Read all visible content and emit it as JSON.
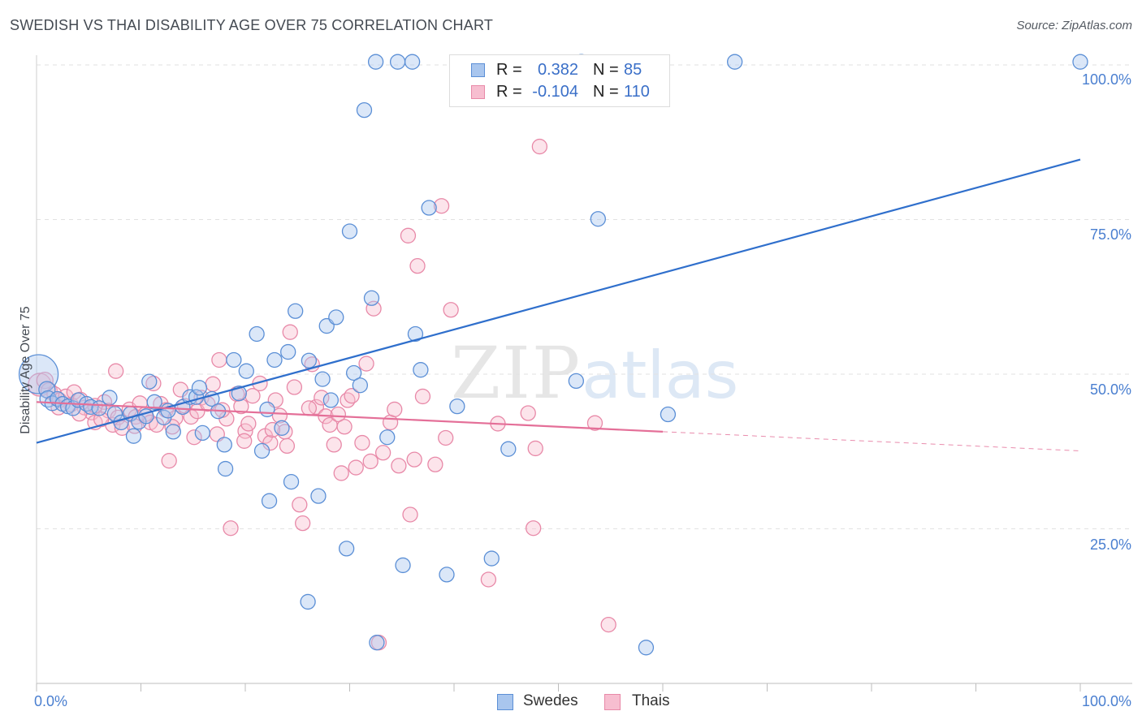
{
  "title": "SWEDISH VS THAI DISABILITY AGE OVER 75 CORRELATION CHART",
  "source": "Source: ZipAtlas.com",
  "watermark": {
    "part1": "ZIP",
    "part2": "atlas"
  },
  "legend": {
    "r_label": "R =",
    "n_label": "N =",
    "rows": [
      {
        "r": "0.382",
        "n": "85"
      },
      {
        "r": "-0.104",
        "n": "110"
      }
    ]
  },
  "colors": {
    "swedes_fill": "#a9c6ee",
    "swedes_stroke": "#5b8fd6",
    "swedes_line": "#2f6fcc",
    "thais_fill": "#f7bed0",
    "thais_stroke": "#e889a8",
    "thais_line": "#e46f98",
    "tick_text": "#4a7fd0",
    "grid": "#e2e2e2"
  },
  "chart_data": {
    "type": "scatter",
    "title": "SWEDISH VS THAI DISABILITY AGE OVER 75 CORRELATION CHART",
    "xlabel": "",
    "ylabel": "Disability Age Over 75",
    "xlim": [
      0,
      100
    ],
    "ylim": [
      0,
      104
    ],
    "x_tick_labels": [
      "0.0%",
      "100.0%"
    ],
    "y_ticks": [
      25,
      50,
      75,
      100
    ],
    "y_tick_labels": [
      "25.0%",
      "50.0%",
      "75.0%",
      "100.0%"
    ],
    "legend_position": "bottom-center",
    "series": [
      {
        "name": "Swedes",
        "r": 0.382,
        "n": 85,
        "trend": {
          "x": [
            0,
            100
          ],
          "y": [
            38.9,
            84.7
          ]
        },
        "points": [
          {
            "x": 0.2,
            "y": 50,
            "s": 24
          },
          {
            "x": 1,
            "y": 47.5,
            "s": 10
          },
          {
            "x": 1.1,
            "y": 46,
            "s": 10
          },
          {
            "x": 1.5,
            "y": 45.3,
            "s": 9
          },
          {
            "x": 2,
            "y": 46,
            "s": 9
          },
          {
            "x": 2.5,
            "y": 45.2,
            "s": 9
          },
          {
            "x": 3,
            "y": 44.8,
            "s": 9
          },
          {
            "x": 3.5,
            "y": 44.5,
            "s": 9
          },
          {
            "x": 4,
            "y": 45.8,
            "s": 9
          },
          {
            "x": 4.8,
            "y": 45.2,
            "s": 9
          },
          {
            "x": 5.2,
            "y": 44.7,
            "s": 9
          },
          {
            "x": 6,
            "y": 44.5,
            "s": 9
          },
          {
            "x": 7,
            "y": 46.2,
            "s": 9
          },
          {
            "x": 7.5,
            "y": 43.6,
            "s": 9
          },
          {
            "x": 8.1,
            "y": 42.2,
            "s": 9
          },
          {
            "x": 9,
            "y": 43.6,
            "s": 9
          },
          {
            "x": 9.3,
            "y": 40,
            "s": 9
          },
          {
            "x": 9.8,
            "y": 42.3,
            "s": 9
          },
          {
            "x": 10.5,
            "y": 43.2,
            "s": 9
          },
          {
            "x": 10.8,
            "y": 48.8,
            "s": 9
          },
          {
            "x": 11.3,
            "y": 45.5,
            "s": 9
          },
          {
            "x": 12.2,
            "y": 43,
            "s": 9
          },
          {
            "x": 12.6,
            "y": 44.1,
            "s": 9
          },
          {
            "x": 13.1,
            "y": 40.7,
            "s": 9
          },
          {
            "x": 14,
            "y": 44.7,
            "s": 9
          },
          {
            "x": 14.7,
            "y": 46.3,
            "s": 9
          },
          {
            "x": 15.3,
            "y": 46.3,
            "s": 9
          },
          {
            "x": 15.6,
            "y": 47.8,
            "s": 9
          },
          {
            "x": 15.9,
            "y": 40.5,
            "s": 9
          },
          {
            "x": 16.8,
            "y": 46,
            "s": 9
          },
          {
            "x": 17.4,
            "y": 44,
            "s": 9
          },
          {
            "x": 18,
            "y": 38.6,
            "s": 9
          },
          {
            "x": 18.1,
            "y": 34.7,
            "s": 9
          },
          {
            "x": 18.9,
            "y": 52.3,
            "s": 9
          },
          {
            "x": 19.4,
            "y": 46.9,
            "s": 9
          },
          {
            "x": 20.1,
            "y": 50.5,
            "s": 9
          },
          {
            "x": 21.1,
            "y": 56.5,
            "s": 9
          },
          {
            "x": 21.6,
            "y": 37.6,
            "s": 9
          },
          {
            "x": 22.1,
            "y": 44.3,
            "s": 9
          },
          {
            "x": 22.3,
            "y": 29.5,
            "s": 9
          },
          {
            "x": 22.8,
            "y": 52.3,
            "s": 9
          },
          {
            "x": 23.5,
            "y": 41.3,
            "s": 9
          },
          {
            "x": 24.1,
            "y": 53.6,
            "s": 9
          },
          {
            "x": 24.4,
            "y": 32.6,
            "s": 9
          },
          {
            "x": 24.8,
            "y": 60.2,
            "s": 9
          },
          {
            "x": 26,
            "y": 13.2,
            "s": 9
          },
          {
            "x": 26.1,
            "y": 52.2,
            "s": 9
          },
          {
            "x": 27,
            "y": 30.3,
            "s": 9
          },
          {
            "x": 27.4,
            "y": 49.2,
            "s": 9
          },
          {
            "x": 27.8,
            "y": 57.8,
            "s": 9
          },
          {
            "x": 28.2,
            "y": 45.8,
            "s": 9
          },
          {
            "x": 28.7,
            "y": 59.2,
            "s": 9
          },
          {
            "x": 29.7,
            "y": 21.8,
            "s": 9
          },
          {
            "x": 30,
            "y": 73.1,
            "s": 9
          },
          {
            "x": 30.4,
            "y": 50.2,
            "s": 9
          },
          {
            "x": 31,
            "y": 48.2,
            "s": 9
          },
          {
            "x": 31.4,
            "y": 92.7,
            "s": 9
          },
          {
            "x": 32.1,
            "y": 62.3,
            "s": 9
          },
          {
            "x": 32.5,
            "y": 100.5,
            "s": 9
          },
          {
            "x": 32.6,
            "y": 6.6,
            "s": 9
          },
          {
            "x": 33.6,
            "y": 39.8,
            "s": 9
          },
          {
            "x": 34.6,
            "y": 100.5,
            "s": 9
          },
          {
            "x": 35.1,
            "y": 19.1,
            "s": 9
          },
          {
            "x": 36,
            "y": 100.5,
            "s": 9
          },
          {
            "x": 36.3,
            "y": 56.5,
            "s": 9
          },
          {
            "x": 36.8,
            "y": 50.7,
            "s": 9
          },
          {
            "x": 37.6,
            "y": 76.9,
            "s": 9
          },
          {
            "x": 39.3,
            "y": 17.6,
            "s": 9
          },
          {
            "x": 40.3,
            "y": 44.8,
            "s": 9
          },
          {
            "x": 43.6,
            "y": 20.2,
            "s": 9
          },
          {
            "x": 45.2,
            "y": 37.9,
            "s": 9
          },
          {
            "x": 52.2,
            "y": 100.5,
            "s": 9
          },
          {
            "x": 51.7,
            "y": 48.9,
            "s": 9
          },
          {
            "x": 53.8,
            "y": 75.1,
            "s": 9
          },
          {
            "x": 58.4,
            "y": 5.8,
            "s": 9
          },
          {
            "x": 60.5,
            "y": 43.5,
            "s": 9
          },
          {
            "x": 66.9,
            "y": 100.5,
            "s": 9
          },
          {
            "x": 100,
            "y": 100.5,
            "s": 9
          }
        ]
      },
      {
        "name": "Thais",
        "r": -0.104,
        "n": 110,
        "trend": {
          "x": [
            0,
            60
          ],
          "y": [
            45.5,
            40.7
          ]
        },
        "trend_dashed": {
          "x": [
            60,
            100
          ],
          "y": [
            40.7,
            37.6
          ]
        },
        "points": [
          {
            "x": 0.3,
            "y": 48.3,
            "s": 14
          },
          {
            "x": 0.8,
            "y": 49,
            "s": 10
          },
          {
            "x": 1.2,
            "y": 47.3,
            "s": 10
          },
          {
            "x": 1.7,
            "y": 46.8,
            "s": 9
          },
          {
            "x": 2.2,
            "y": 45.8,
            "s": 9
          },
          {
            "x": 2.8,
            "y": 46.4,
            "s": 9
          },
          {
            "x": 3.3,
            "y": 45.1,
            "s": 9
          },
          {
            "x": 3.6,
            "y": 47.1,
            "s": 9
          },
          {
            "x": 4.2,
            "y": 45.9,
            "s": 9
          },
          {
            "x": 4.6,
            "y": 44.6,
            "s": 9
          },
          {
            "x": 5.3,
            "y": 43.8,
            "s": 9
          },
          {
            "x": 5.6,
            "y": 44.9,
            "s": 9
          },
          {
            "x": 6.5,
            "y": 45.5,
            "s": 9
          },
          {
            "x": 6.9,
            "y": 44.1,
            "s": 9
          },
          {
            "x": 7.3,
            "y": 41.8,
            "s": 9
          },
          {
            "x": 7.8,
            "y": 43,
            "s": 9
          },
          {
            "x": 8.2,
            "y": 41.3,
            "s": 9
          },
          {
            "x": 7.6,
            "y": 50.5,
            "s": 9
          },
          {
            "x": 8.9,
            "y": 44.3,
            "s": 9
          },
          {
            "x": 9.5,
            "y": 43.1,
            "s": 9
          },
          {
            "x": 9.9,
            "y": 45.3,
            "s": 9
          },
          {
            "x": 10.4,
            "y": 43.5,
            "s": 9
          },
          {
            "x": 10.9,
            "y": 42.2,
            "s": 9
          },
          {
            "x": 11.2,
            "y": 48.5,
            "s": 9
          },
          {
            "x": 11.5,
            "y": 41.8,
            "s": 9
          },
          {
            "x": 11.9,
            "y": 45.2,
            "s": 9
          },
          {
            "x": 12.4,
            "y": 44.2,
            "s": 9
          },
          {
            "x": 12.7,
            "y": 36,
            "s": 9
          },
          {
            "x": 13.3,
            "y": 42.9,
            "s": 9
          },
          {
            "x": 13.8,
            "y": 47.5,
            "s": 9
          },
          {
            "x": 14.2,
            "y": 44.9,
            "s": 9
          },
          {
            "x": 14.8,
            "y": 43.1,
            "s": 9
          },
          {
            "x": 15.4,
            "y": 44,
            "s": 9
          },
          {
            "x": 15.8,
            "y": 46.2,
            "s": 9
          },
          {
            "x": 16.4,
            "y": 45.2,
            "s": 9
          },
          {
            "x": 16.9,
            "y": 48.4,
            "s": 9
          },
          {
            "x": 17.3,
            "y": 40.3,
            "s": 9
          },
          {
            "x": 17.5,
            "y": 52.3,
            "s": 9
          },
          {
            "x": 18.2,
            "y": 42.8,
            "s": 9
          },
          {
            "x": 18.6,
            "y": 25.1,
            "s": 9
          },
          {
            "x": 19.2,
            "y": 46.8,
            "s": 9
          },
          {
            "x": 19.6,
            "y": 44.8,
            "s": 9
          },
          {
            "x": 20,
            "y": 40.8,
            "s": 9
          },
          {
            "x": 20.3,
            "y": 42,
            "s": 9
          },
          {
            "x": 20.7,
            "y": 46.5,
            "s": 9
          },
          {
            "x": 21.4,
            "y": 48.5,
            "s": 9
          },
          {
            "x": 21.9,
            "y": 40,
            "s": 9
          },
          {
            "x": 22.4,
            "y": 38.9,
            "s": 9
          },
          {
            "x": 22.9,
            "y": 45.8,
            "s": 9
          },
          {
            "x": 23.3,
            "y": 43.3,
            "s": 9
          },
          {
            "x": 23.8,
            "y": 40.7,
            "s": 9
          },
          {
            "x": 24,
            "y": 38.4,
            "s": 9
          },
          {
            "x": 24.3,
            "y": 56.8,
            "s": 9
          },
          {
            "x": 24.7,
            "y": 47.9,
            "s": 9
          },
          {
            "x": 25.2,
            "y": 28.9,
            "s": 9
          },
          {
            "x": 25.5,
            "y": 25.9,
            "s": 9
          },
          {
            "x": 26.4,
            "y": 51.6,
            "s": 9
          },
          {
            "x": 26.8,
            "y": 44.7,
            "s": 9
          },
          {
            "x": 27.3,
            "y": 46.2,
            "s": 9
          },
          {
            "x": 27.7,
            "y": 43.2,
            "s": 9
          },
          {
            "x": 28.1,
            "y": 41.8,
            "s": 9
          },
          {
            "x": 28.5,
            "y": 38.6,
            "s": 9
          },
          {
            "x": 28.9,
            "y": 43.5,
            "s": 9
          },
          {
            "x": 29.2,
            "y": 34,
            "s": 9
          },
          {
            "x": 29.8,
            "y": 45.8,
            "s": 9
          },
          {
            "x": 30.2,
            "y": 46.5,
            "s": 9
          },
          {
            "x": 30.6,
            "y": 34.9,
            "s": 9
          },
          {
            "x": 31.2,
            "y": 38.9,
            "s": 9
          },
          {
            "x": 31.6,
            "y": 51.7,
            "s": 9
          },
          {
            "x": 32,
            "y": 35.9,
            "s": 9
          },
          {
            "x": 32.3,
            "y": 60.6,
            "s": 9
          },
          {
            "x": 32.8,
            "y": 6.6,
            "s": 9
          },
          {
            "x": 33.2,
            "y": 37.3,
            "s": 9
          },
          {
            "x": 33.9,
            "y": 42.2,
            "s": 9
          },
          {
            "x": 34.3,
            "y": 44.3,
            "s": 9
          },
          {
            "x": 34.7,
            "y": 35.2,
            "s": 9
          },
          {
            "x": 35.6,
            "y": 72.4,
            "s": 9
          },
          {
            "x": 35.8,
            "y": 27.3,
            "s": 9
          },
          {
            "x": 36.2,
            "y": 36.2,
            "s": 9
          },
          {
            "x": 36.5,
            "y": 67.5,
            "s": 9
          },
          {
            "x": 37,
            "y": 46.4,
            "s": 9
          },
          {
            "x": 38.2,
            "y": 35.4,
            "s": 9
          },
          {
            "x": 38.8,
            "y": 77.2,
            "s": 9
          },
          {
            "x": 39.2,
            "y": 39.7,
            "s": 9
          },
          {
            "x": 39.7,
            "y": 60.4,
            "s": 9
          },
          {
            "x": 43.3,
            "y": 16.8,
            "s": 9
          },
          {
            "x": 44.2,
            "y": 42,
            "s": 9
          },
          {
            "x": 47.1,
            "y": 43.7,
            "s": 9
          },
          {
            "x": 47.6,
            "y": 25.1,
            "s": 9
          },
          {
            "x": 47.8,
            "y": 38,
            "s": 9
          },
          {
            "x": 48.2,
            "y": 86.8,
            "s": 9
          },
          {
            "x": 53.5,
            "y": 42.1,
            "s": 9
          },
          {
            "x": 54.8,
            "y": 9.5,
            "s": 9
          },
          {
            "x": 5.6,
            "y": 42.2,
            "s": 9
          },
          {
            "x": 9.4,
            "y": 41.6,
            "s": 9
          },
          {
            "x": 2.1,
            "y": 44.6,
            "s": 9
          },
          {
            "x": 4.1,
            "y": 43.6,
            "s": 9
          },
          {
            "x": 6.2,
            "y": 42.7,
            "s": 9
          },
          {
            "x": 13,
            "y": 41.5,
            "s": 9
          },
          {
            "x": 15.1,
            "y": 39.8,
            "s": 9
          },
          {
            "x": 17.8,
            "y": 44.2,
            "s": 9
          },
          {
            "x": 19.9,
            "y": 39.2,
            "s": 9
          },
          {
            "x": 22.6,
            "y": 41,
            "s": 9
          },
          {
            "x": 26.1,
            "y": 44.5,
            "s": 9
          },
          {
            "x": 29.5,
            "y": 41.5,
            "s": 9
          }
        ]
      }
    ]
  }
}
